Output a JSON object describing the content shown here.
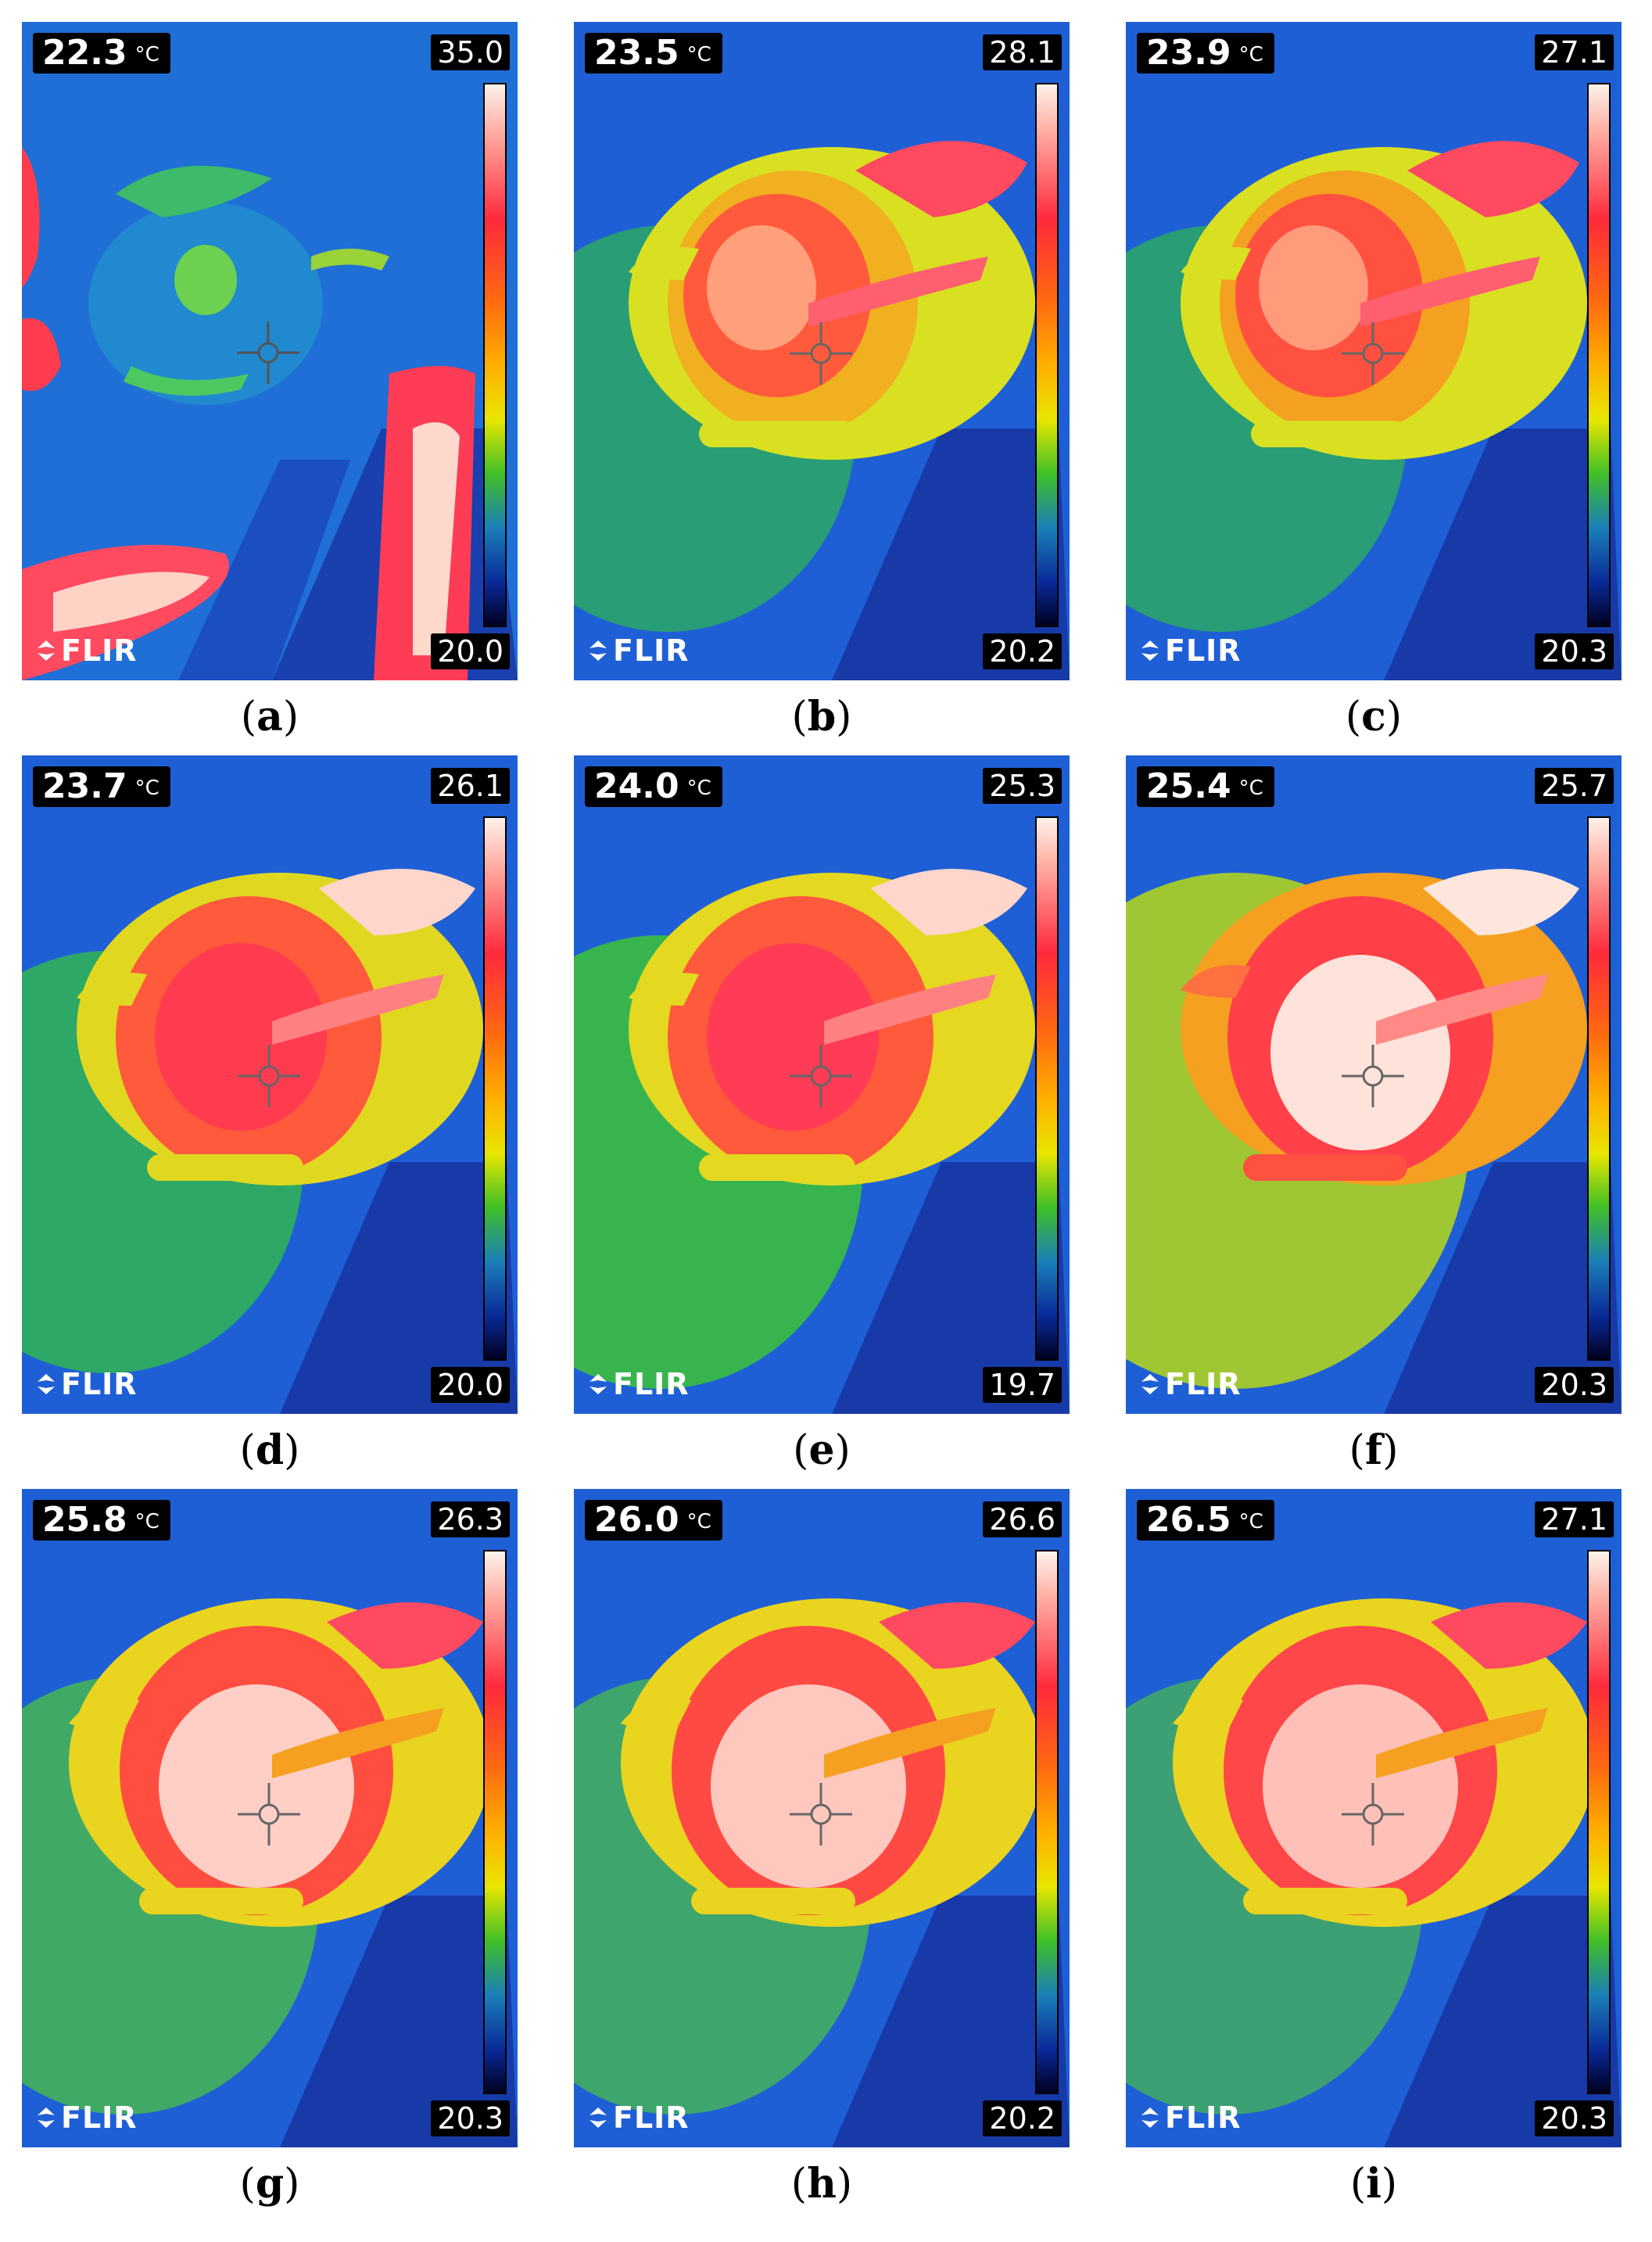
{
  "panels": [
    {
      "id": "a",
      "spot": "22.3",
      "unit": "°C",
      "max": "35.0",
      "min": "20.0",
      "caption_open": "(",
      "caption_letter": "a",
      "caption_close": ")"
    },
    {
      "id": "b",
      "spot": "23.5",
      "unit": "°C",
      "max": "28.1",
      "min": "20.2",
      "caption_open": "(",
      "caption_letter": "b",
      "caption_close": ")"
    },
    {
      "id": "c",
      "spot": "23.9",
      "unit": "°C",
      "max": "27.1",
      "min": "20.3",
      "caption_open": "(",
      "caption_letter": "c",
      "caption_close": ")"
    },
    {
      "id": "d",
      "spot": "23.7",
      "unit": "°C",
      "max": "26.1",
      "min": "20.0",
      "caption_open": "(",
      "caption_letter": "d",
      "caption_close": ")"
    },
    {
      "id": "e",
      "spot": "24.0",
      "unit": "°C",
      "max": "25.3",
      "min": "19.7",
      "caption_open": "(",
      "caption_letter": "e",
      "caption_close": ")"
    },
    {
      "id": "f",
      "spot": "25.4",
      "unit": "°C",
      "max": "25.7",
      "min": "20.3",
      "caption_open": "(",
      "caption_letter": "f",
      "caption_close": ")"
    },
    {
      "id": "g",
      "spot": "25.8",
      "unit": "°C",
      "max": "26.3",
      "min": "20.3",
      "caption_open": "(",
      "caption_letter": "g",
      "caption_close": ")"
    },
    {
      "id": "h",
      "spot": "26.0",
      "unit": "°C",
      "max": "26.6",
      "min": "20.2",
      "caption_open": "(",
      "caption_letter": "h",
      "caption_close": ")"
    },
    {
      "id": "i",
      "spot": "26.5",
      "unit": "°C",
      "max": "27.1",
      "min": "20.3",
      "caption_open": "(",
      "caption_letter": "i",
      "caption_close": ")"
    }
  ],
  "brand": "FLIR",
  "colors": {
    "background_cold": "#1f5fd6",
    "mid_green": "#3fbf28",
    "warm_yellow": "#e7e600",
    "hot_red": "#ff2a3c",
    "hottest": "#fff2ec"
  }
}
